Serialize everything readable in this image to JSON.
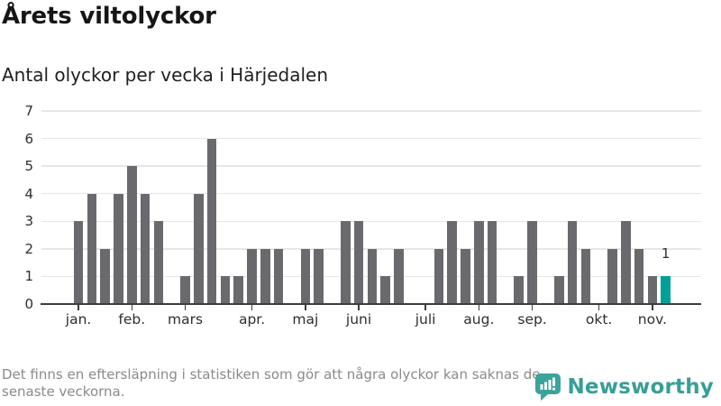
{
  "header": {
    "title": "Årets viltolyckor",
    "subtitle": "Antal olyckor per vecka i Härjedalen"
  },
  "chart_data": {
    "type": "bar",
    "title": "Årets viltolyckor",
    "subtitle": "Antal olyckor per vecka i Härjedalen",
    "ylabel": "Antal olyckor per vecka",
    "xlabel": "",
    "ylim": [
      0,
      7
    ],
    "y_ticks": [
      0,
      1,
      2,
      3,
      4,
      5,
      6,
      7
    ],
    "grid": "horizontal",
    "legend_position": "none",
    "values": [
      3,
      4,
      2,
      4,
      5,
      4,
      3,
      0,
      1,
      4,
      6,
      1,
      1,
      2,
      2,
      2,
      0,
      2,
      2,
      0,
      3,
      3,
      2,
      1,
      2,
      0,
      0,
      2,
      3,
      2,
      3,
      3,
      0,
      1,
      3,
      0,
      1,
      3,
      2,
      0,
      2,
      3,
      2,
      1,
      1
    ],
    "highlight_index": 44,
    "highlight_label": "1",
    "month_ticks": [
      {
        "label": "jan.",
        "bar_index": 0
      },
      {
        "label": "feb.",
        "bar_index": 4
      },
      {
        "label": "mars",
        "bar_index": 8
      },
      {
        "label": "apr.",
        "bar_index": 13
      },
      {
        "label": "maj",
        "bar_index": 17
      },
      {
        "label": "juni",
        "bar_index": 21
      },
      {
        "label": "juli",
        "bar_index": 26
      },
      {
        "label": "aug.",
        "bar_index": 30
      },
      {
        "label": "sep.",
        "bar_index": 34
      },
      {
        "label": "okt.",
        "bar_index": 39
      },
      {
        "label": "nov.",
        "bar_index": 43
      }
    ],
    "bar_color": "#6a6a6e",
    "highlight_color": "#00a099",
    "gridline_color": "#e6e6e6",
    "axis_color": "#3d3d3d"
  },
  "footer": {
    "disclaimer_line1": "Det finns en eftersläpning i statistiken som gör att några olyckor kan saknas de",
    "disclaimer_line2": "senaste veckorna.",
    "brand": "Newsworthy",
    "brand_color": "#379e96"
  }
}
